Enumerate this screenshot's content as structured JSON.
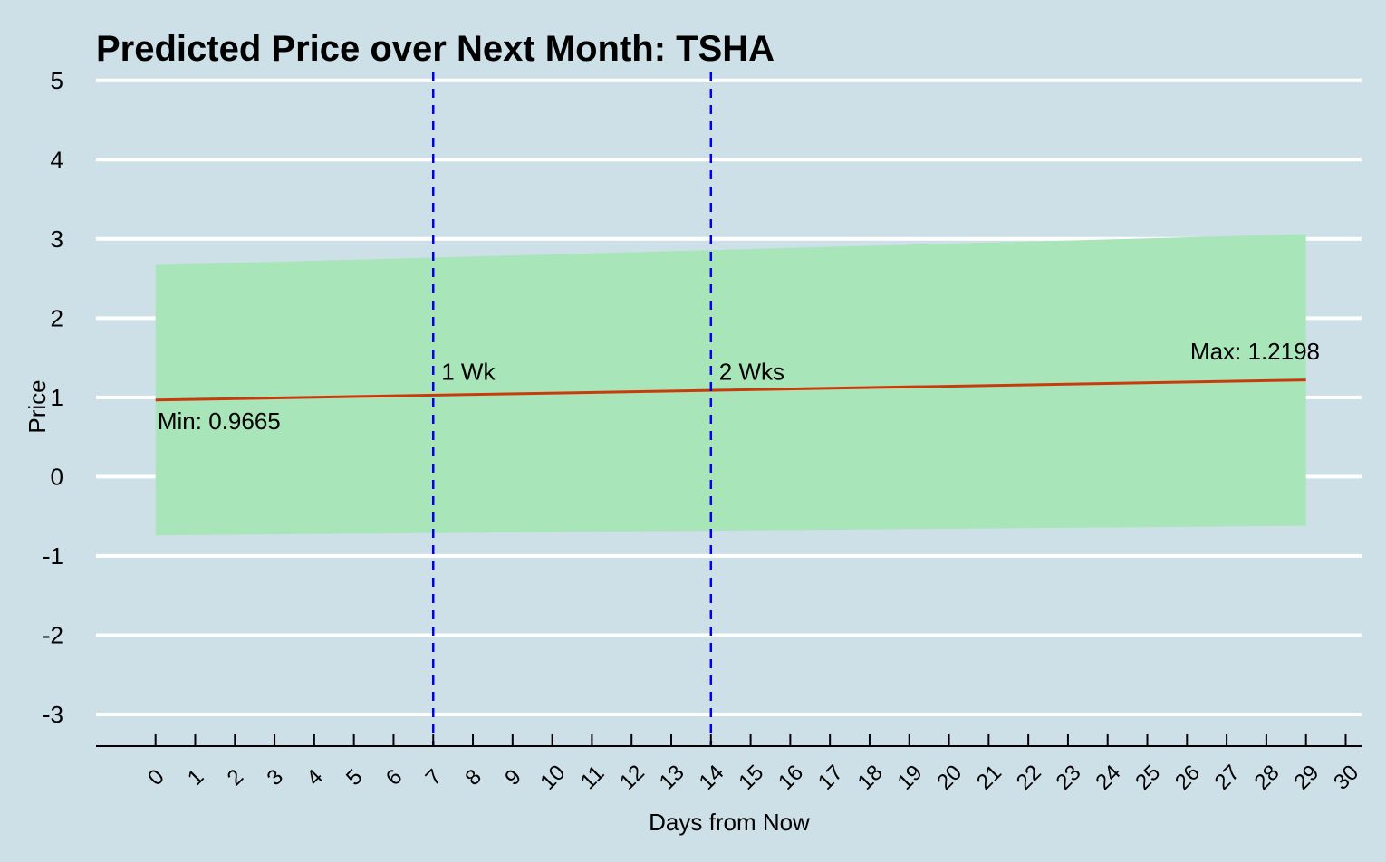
{
  "chart_data": {
    "type": "line",
    "title": "Predicted Price over Next Month: TSHA",
    "xlabel": "Days from Now",
    "ylabel": "Price",
    "xlim": [
      -1.5,
      30.4
    ],
    "ylim": [
      -3.4,
      5.1
    ],
    "x_ticks": [
      0,
      1,
      2,
      3,
      4,
      5,
      6,
      7,
      8,
      9,
      10,
      11,
      12,
      13,
      14,
      15,
      16,
      17,
      18,
      19,
      20,
      21,
      22,
      23,
      24,
      25,
      26,
      27,
      28,
      29,
      30
    ],
    "y_ticks": [
      -3,
      -2,
      -1,
      0,
      1,
      2,
      3,
      4,
      5
    ],
    "grid": "horizontal",
    "colors": {
      "background": "#cddfe7",
      "grid": "#ffffff",
      "band": "#a8e5b8",
      "line": "#c83c0c",
      "vline": "#0000ee"
    },
    "series": [
      {
        "x": [
          0,
          29
        ],
        "y": [
          0.9665,
          1.2198
        ]
      }
    ],
    "band": {
      "x": [
        0,
        29
      ],
      "upper": [
        2.67,
        3.06
      ],
      "lower": [
        -0.74,
        -0.62
      ]
    },
    "vlines": [
      {
        "x": 7,
        "label": "1 Wk",
        "label_y": 1.22
      },
      {
        "x": 14,
        "label": "2 Wks",
        "label_y": 1.22
      }
    ],
    "annotations": [
      {
        "text": "Min: 0.9665",
        "x": 0.05,
        "y": 0.6
      },
      {
        "text": "Max: 1.2198",
        "x": 29.35,
        "y": 1.48
      }
    ]
  }
}
